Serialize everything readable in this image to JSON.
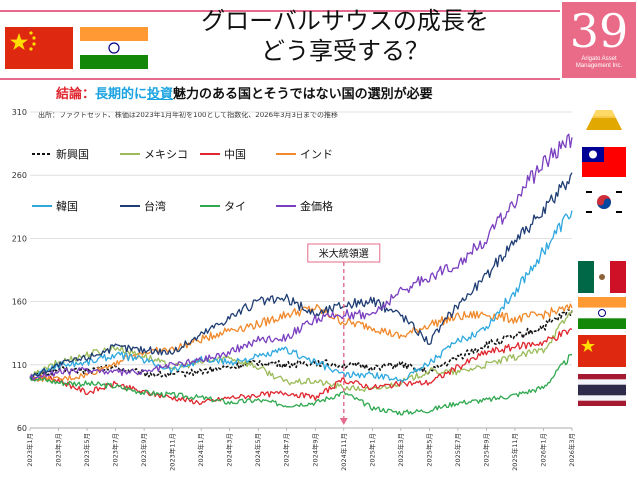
{
  "header": {
    "title_line1": "グローバルサウスの成長を",
    "title_line2": "どう享受する？",
    "badge_number": "39",
    "badge_org_line1": "Arigato Asset",
    "badge_org_line2": "Management Inc.",
    "conclusion_label": "結論：",
    "conclusion_highlight1": "長期的に",
    "conclusion_highlight2": "投資",
    "conclusion_rest": "魅力のある国とそうではない国の選別が必要"
  },
  "source_note": "出所：ファクトセット、株価は2023年1月年初を100として指数化、2026年3月3日までの推移",
  "colors": {
    "pink": "#e46b8e",
    "emerging": "#111111",
    "mexico": "#9bbb59",
    "china": "#e0262e",
    "india": "#f0892b",
    "korea": "#2ea8df",
    "taiwan": "#1f3d73",
    "thailand": "#2fa84f",
    "gold": "#7a3fbf"
  },
  "chart_data": {
    "type": "line",
    "title": "",
    "xlabel": "",
    "ylabel": "",
    "ylim": [
      60,
      310
    ],
    "yticks": [
      "310",
      "260",
      "210",
      "160",
      "110",
      "60"
    ],
    "ytick_values": [
      310,
      260,
      210,
      160,
      110,
      60
    ],
    "grid": true,
    "categories": [
      "2023年1月",
      "2023年3月",
      "2023年5月",
      "2023年7月",
      "2023年9月",
      "2023年11月",
      "2024年1月",
      "2024年3月",
      "2024年5月",
      "2024年7月",
      "2024年9月",
      "2024年11月",
      "2025年1月",
      "2025年3月",
      "2025年5月",
      "2025年7月",
      "2025年9月",
      "2025年11月",
      "2026年1月",
      "2026年3月"
    ],
    "annotation": {
      "label": "米大統領選",
      "at": "2024年11月"
    },
    "series": [
      {
        "name": "新興国",
        "dashed": true,
        "values": [
          100,
          106,
          105,
          108,
          103,
          102,
          105,
          108,
          112,
          110,
          112,
          110,
          108,
          110,
          104,
          116,
          126,
          132,
          140,
          153
        ]
      },
      {
        "name": "メキシコ",
        "values": [
          100,
          112,
          118,
          124,
          117,
          108,
          112,
          116,
          108,
          96,
          97,
          92,
          90,
          96,
          105,
          104,
          110,
          116,
          122,
          153
        ]
      },
      {
        "name": "中国",
        "values": [
          100,
          98,
          88,
          95,
          88,
          84,
          80,
          84,
          86,
          88,
          84,
          98,
          92,
          95,
          96,
          108,
          120,
          124,
          128,
          138
        ]
      },
      {
        "name": "インド",
        "values": [
          100,
          98,
          102,
          112,
          120,
          122,
          130,
          138,
          142,
          150,
          155,
          144,
          140,
          132,
          142,
          148,
          150,
          146,
          150,
          155
        ]
      },
      {
        "name": "韓国",
        "values": [
          100,
          110,
          112,
          118,
          114,
          106,
          114,
          112,
          116,
          122,
          112,
          102,
          102,
          98,
          112,
          128,
          140,
          168,
          200,
          232
        ]
      },
      {
        "name": "台湾",
        "values": [
          100,
          110,
          116,
          124,
          122,
          120,
          134,
          148,
          160,
          162,
          150,
          158,
          160,
          150,
          128,
          158,
          180,
          210,
          230,
          262
        ]
      },
      {
        "name": "タイ",
        "values": [
          100,
          96,
          95,
          93,
          88,
          86,
          84,
          80,
          82,
          78,
          80,
          88,
          76,
          72,
          74,
          80,
          82,
          86,
          92,
          118
        ]
      },
      {
        "name": "金価格",
        "values": [
          100,
          104,
          106,
          104,
          104,
          110,
          114,
          120,
          130,
          132,
          146,
          150,
          150,
          168,
          180,
          190,
          210,
          240,
          270,
          290
        ]
      }
    ],
    "legend_row1": [
      "新興国",
      "メキシコ",
      "中国",
      "インド"
    ],
    "legend_row2": [
      "韓国",
      "台湾",
      "タイ",
      "金価格"
    ]
  }
}
